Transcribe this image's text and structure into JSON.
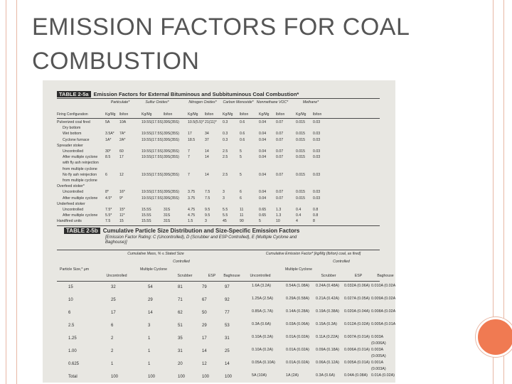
{
  "slide": {
    "title_line1": "EMISSION FACTORS FOR COAL",
    "title_line2": "COMBUSTION",
    "accent_color": "#f07a52",
    "frame_color": "#e8b7a4"
  },
  "table_a": {
    "number": "TABLE 2-5a",
    "caption": "Emission Factors for External Bituminous and Subbituminous Coal Combustion*",
    "group_headers": [
      "Particulate*",
      "Sulfur Oxides*",
      "Nitrogen Oxides*",
      "Carbon Monoxide*",
      "Nonmethane VOC*",
      "Methane*"
    ],
    "units": [
      "Kg/Mg",
      "lb/ton",
      "Kg/Mg",
      "lb/ton",
      "Kg/Mg",
      "lb/ton",
      "Kg/Mg",
      "lb/ton",
      "Kg/Mg",
      "lb/ton",
      "Kg/Mg",
      "lb/ton"
    ],
    "first_col_header": "Firing Configuration",
    "rows": [
      [
        "Pulverized coal fired",
        "5A",
        "10A",
        "19.5S(17.5S)",
        "39S(35S)",
        "10.5(5.5)*",
        "21(11)*",
        "0.3",
        "0.6",
        "0.04",
        "0.07",
        "0.015",
        "0.03"
      ],
      [
        "Dry bottom",
        "",
        "",
        "",
        "",
        "",
        "",
        "",
        "",
        "",
        "",
        "",
        ""
      ],
      [
        "Wet bottom",
        "3.5A*",
        "7A*",
        "19.5S(17.5S)",
        "39S(35S)",
        "17",
        "34",
        "0.3",
        "0.6",
        "0.04",
        "0.07",
        "0.015",
        "0.03"
      ],
      [
        "Cyclone furnace",
        "1A*",
        "2A*",
        "19.5S(17.5S)",
        "39S(35S)",
        "18.5",
        "37",
        "0.3",
        "0.6",
        "0.04",
        "0.07",
        "0.015",
        "0.03"
      ],
      [
        "Spreader stoker",
        "",
        "",
        "",
        "",
        "",
        "",
        "",
        "",
        "",
        "",
        "",
        ""
      ],
      [
        "Uncontrolled",
        "30*",
        "60",
        "19.5S(17.5S)",
        "39S(35S)",
        "7",
        "14",
        "2.5",
        "5",
        "0.04",
        "0.07",
        "0.015",
        "0.03"
      ],
      [
        "After multiple cyclone",
        "8.5",
        "17",
        "19.5S(17.5S)",
        "39S(35S)",
        "7",
        "14",
        "2.5",
        "5",
        "0.04",
        "0.07",
        "0.015",
        "0.03"
      ],
      [
        "with fly ash reinjection",
        "",
        "",
        "",
        "",
        "",
        "",
        "",
        "",
        "",
        "",
        "",
        ""
      ],
      [
        "from multiple cyclone",
        "",
        "",
        "",
        "",
        "",
        "",
        "",
        "",
        "",
        "",
        "",
        ""
      ],
      [
        "No fly ash reinjection",
        "6",
        "12",
        "19.5S(17.5S)",
        "39S(35S)",
        "7",
        "14",
        "2.5",
        "5",
        "0.04",
        "0.07",
        "0.015",
        "0.03"
      ],
      [
        "from multiple cyclone",
        "",
        "",
        "",
        "",
        "",
        "",
        "",
        "",
        "",
        "",
        "",
        ""
      ],
      [
        "Overfeed stoker*",
        "",
        "",
        "",
        "",
        "",
        "",
        "",
        "",
        "",
        "",
        "",
        ""
      ],
      [
        "Uncontrolled",
        "8*",
        "16*",
        "19.5S(17.5S)",
        "39S(35S)",
        "3.75",
        "7.5",
        "3",
        "6",
        "0.04",
        "0.07",
        "0.015",
        "0.03"
      ],
      [
        "After multiple cyclone",
        "4.5*",
        "9*",
        "19.5S(17.5S)",
        "39S(35S)",
        "3.75",
        "7.5",
        "3",
        "6",
        "0.04",
        "0.07",
        "0.015",
        "0.03"
      ],
      [
        "Underfeed stoker",
        "",
        "",
        "",
        "",
        "",
        "",
        "",
        "",
        "",
        "",
        "",
        ""
      ],
      [
        "Uncontrolled",
        "7.5*",
        "15*",
        "15.5S",
        "31S",
        "4.75",
        "9.5",
        "5.5",
        "11",
        "0.65",
        "1.3",
        "0.4",
        "0.8"
      ],
      [
        "After multiple cyclone",
        "5.5*",
        "11*",
        "15.5S",
        "31S",
        "4.75",
        "9.5",
        "5.5",
        "11",
        "0.65",
        "1.3",
        "0.4",
        "0.8"
      ],
      [
        "Handfired units",
        "7.5",
        "15",
        "15.5S",
        "31S",
        "1.5",
        "3",
        "45",
        "90",
        "5",
        "10",
        "4",
        "8"
      ]
    ]
  },
  "table_b": {
    "number": "TABLE 2-5b",
    "caption": "Cumulative Particle Size Distribution and Size-Specific Emission Factors",
    "description": "[Emission Factor Rating: C (Uncontrolled), D (Scrubber and ESP Controlled), E (Multiple Cyclone and Baghouse)]",
    "mass_header": "Cumulative Mass, % ≤ Stated Size",
    "factor_header": "Cumulative Emission Factor* [kg/Mg (lb/ton) coal, as fired]",
    "controlled_label": "Controlled",
    "particle_size_label": "Particle Size,* μm",
    "columns": [
      "Uncontrolled",
      "Multiple Cyclone",
      "Scrubber",
      "ESP",
      "Baghouse",
      "Uncontrolled",
      "Multiple Cyclone",
      "Scrubber",
      "ESP",
      "Baghouse"
    ],
    "sizes": [
      "15",
      "10",
      "6",
      "2.5",
      "1.25",
      "1.00",
      "0.625",
      "Total"
    ],
    "uncontrolled": [
      "32",
      "25",
      "17",
      "6",
      "2",
      "2",
      "1",
      "100"
    ],
    "multiple_cyclone": [
      "54",
      "29",
      "14",
      "3",
      "1",
      "1",
      "1",
      "100"
    ],
    "scrubber": [
      "81",
      "71",
      "62",
      "51",
      "35",
      "31",
      "20",
      "100"
    ],
    "esp": [
      "79",
      "67",
      "50",
      "29",
      "17",
      "14",
      "12",
      "100"
    ],
    "baghouse": [
      "97",
      "92",
      "77",
      "53",
      "31",
      "25",
      "14",
      "100"
    ],
    "ef_uncontrolled": [
      "1.6A (3.2A)",
      "1.25A (2.5A)",
      "0.85A (1.7A)",
      "0.3A (0.6A)",
      "0.10A (0.2A)",
      "0.10A (0.2A)",
      "0.05A (0.10A)",
      "5A (10A)"
    ],
    "ef_multiple_cyclone": [
      "0.54A (1.08A)",
      "0.29A (0.58A)",
      "0.14A (0.28A)",
      "0.03A (0.06A)",
      "0.01A (0.02A)",
      "0.01A (0.02A)",
      "0.01A (0.02A)",
      "1A (2A)"
    ],
    "ef_scrubber": [
      "0.24A (0.48A)",
      "0.21A (0.42A)",
      "0.19A (0.38A)",
      "0.15A (0.3A)",
      "0.11A (0.22A)",
      "0.09A (0.18A)",
      "0.06A (0.12A)",
      "0.3A (0.6A)"
    ],
    "ef_esp": [
      "0.032A (0.06A)",
      "0.027A (0.05A)",
      "0.020A (0.04A)",
      "0.012A (0.02A)",
      "0.007A (0.01A)",
      "0.006A (0.01A)",
      "0.005A (0.01A)",
      "0.04A (0.08A)"
    ],
    "ef_baghouse": [
      "0.010A (0.02A)",
      "0.009A (0.02A)",
      "0.008A (0.02A)",
      "0.005A (0.01A)",
      "0.003A (0.006A)",
      "0.003A (0.005A)",
      "0.001A (0.003A)",
      "0.01A (0.02A)"
    ]
  }
}
